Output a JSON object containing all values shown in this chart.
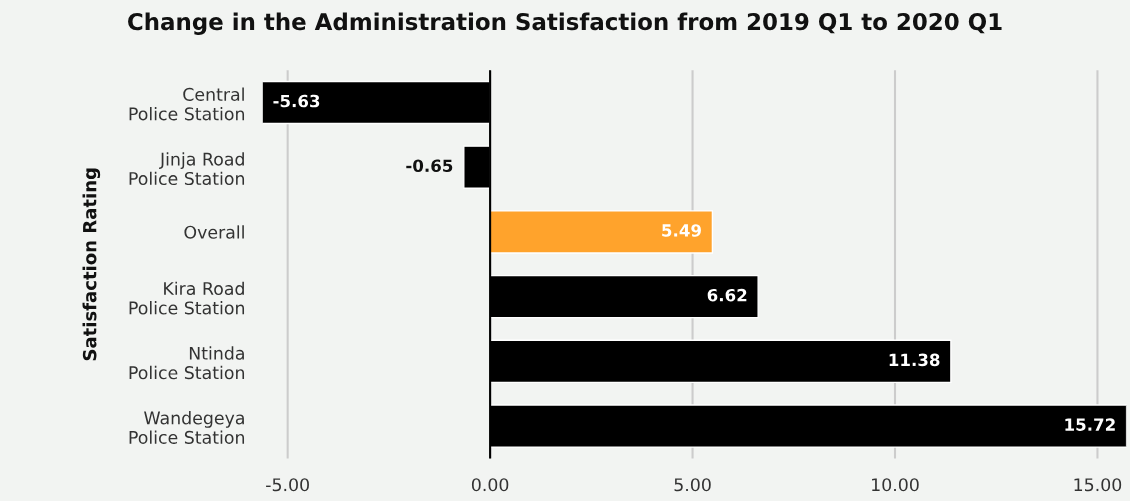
{
  "chart_data": {
    "type": "bar",
    "orientation": "horizontal",
    "title": "Change in the Administration Satisfaction from 2019 Q1 to 2020 Q1",
    "ylabel": "Satisfaction Rating",
    "categories": [
      "Central\nPolice Station",
      "Jinja Road\nPolice Station",
      "Overall",
      "Kira Road\nPolice Station",
      "Ntinda\nPolice Station",
      "Wandegeya\nPolice Station"
    ],
    "values": [
      -5.63,
      -0.65,
      5.49,
      6.62,
      11.38,
      15.72
    ],
    "colors": [
      "#000000",
      "#000000",
      "#ffa32c",
      "#000000",
      "#000000",
      "#000000"
    ],
    "xlim": [
      -5.63,
      15.72
    ],
    "xticks": [
      {
        "value": -5,
        "label": "-5.00"
      },
      {
        "value": 0,
        "label": "0.00"
      },
      {
        "value": 5,
        "label": "5.00"
      },
      {
        "value": 10,
        "label": "10.00"
      },
      {
        "value": 15,
        "label": "15.00"
      }
    ],
    "ref_lines": [
      {
        "axis": "x",
        "value": 0,
        "color": "#000000"
      }
    ],
    "grid": "x",
    "data_labels": true
  }
}
